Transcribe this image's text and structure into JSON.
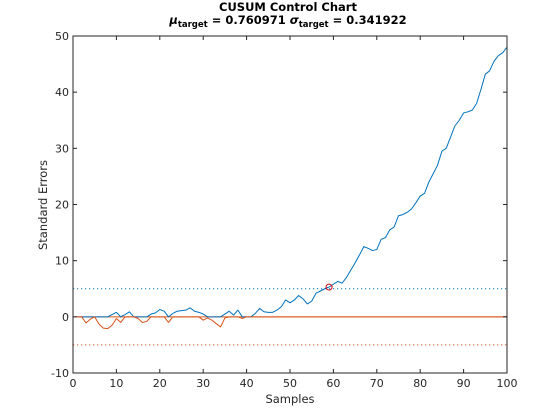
{
  "chart_data": {
    "type": "line",
    "title": "CUSUM Control Chart",
    "subtitle": {
      "mu_symbol": "μ",
      "sigma_symbol": "σ",
      "subscript": "target",
      "mu_text": " = 0.760971 ",
      "sigma_text": " = 0.341922"
    },
    "xlabel": "Samples",
    "ylabel": "Standard Errors",
    "xlim": [
      0,
      100
    ],
    "ylim": [
      -10,
      50
    ],
    "xticks": [
      "0",
      "10",
      "20",
      "30",
      "40",
      "50",
      "60",
      "70",
      "80",
      "90",
      "100"
    ],
    "yticks": [
      "-10",
      "0",
      "10",
      "20",
      "30",
      "40",
      "50"
    ],
    "grid": false,
    "control_limits": {
      "upper": 5,
      "lower": -5
    },
    "target_line": 0,
    "out_of_control_point": {
      "x": 59,
      "y": 5.3
    },
    "series": [
      {
        "color": "#0072BD",
        "x": [
          1,
          2,
          3,
          4,
          5,
          6,
          7,
          8,
          9,
          10,
          11,
          12,
          13,
          14,
          15,
          16,
          17,
          18,
          19,
          20,
          21,
          22,
          23,
          24,
          25,
          26,
          27,
          28,
          29,
          30,
          31,
          32,
          33,
          34,
          35,
          36,
          37,
          38,
          39,
          40,
          41,
          42,
          43,
          44,
          45,
          46,
          47,
          48,
          49,
          50,
          51,
          52,
          53,
          54,
          55,
          56,
          57,
          58,
          59,
          60,
          61,
          62,
          63,
          64,
          65,
          66,
          67,
          68,
          69,
          70,
          71,
          72,
          73,
          74,
          75,
          76,
          77,
          78,
          79,
          80,
          81,
          82,
          83,
          84,
          85,
          86,
          87,
          88,
          89,
          90,
          91,
          92,
          93,
          94,
          95,
          96,
          97,
          98,
          99,
          100
        ],
        "values": [
          0,
          0,
          0,
          0,
          0,
          0,
          0,
          0,
          0.4,
          0.8,
          0,
          0.4,
          0.9,
          0,
          0,
          0,
          0,
          0.5,
          0.7,
          1.3,
          1.0,
          0,
          0.6,
          1.0,
          1.1,
          1.2,
          1.6,
          1.0,
          0.8,
          0.5,
          0,
          0,
          0,
          0,
          0.5,
          1.0,
          0.3,
          1.2,
          0,
          0,
          0,
          0.6,
          1.5,
          0.9,
          0.8,
          0.8,
          1.2,
          1.8,
          3.0,
          2.5,
          3.0,
          3.8,
          3.2,
          2.3,
          2.8,
          4.2,
          4.6,
          5.0,
          5.3,
          5.8,
          6.3,
          6.0,
          7.0,
          8.3,
          9.6,
          11.0,
          12.5,
          12.2,
          11.8,
          12.0,
          13.8,
          14.1,
          15.5,
          16.0,
          18.0,
          18.2,
          18.6,
          19.2,
          20.3,
          21.5,
          22.0,
          24.0,
          25.5,
          27.0,
          29.5,
          30.0,
          32.0,
          34.0,
          35.0,
          36.3,
          36.5,
          36.8,
          38.0,
          40.5,
          43.2,
          43.8,
          45.5,
          46.5,
          47.0,
          48.0
        ]
      },
      {
        "color": "#D95319",
        "x": [
          1,
          2,
          3,
          4,
          5,
          6,
          7,
          8,
          9,
          10,
          11,
          12,
          13,
          14,
          15,
          16,
          17,
          18,
          19,
          20,
          21,
          22,
          23,
          24,
          25,
          26,
          27,
          28,
          29,
          30,
          31,
          32,
          33,
          34,
          35,
          36,
          37,
          38,
          39,
          40,
          41,
          42,
          43,
          44,
          45,
          46,
          47,
          48,
          49,
          50,
          51,
          52,
          53,
          54,
          55,
          56,
          57,
          58,
          59,
          60,
          61,
          62,
          63,
          64,
          65,
          66,
          67,
          68,
          69,
          70,
          71,
          72,
          73,
          74,
          75,
          76,
          77,
          78,
          79,
          80,
          81,
          82,
          83,
          84,
          85,
          86,
          87,
          88,
          89,
          90,
          91,
          92,
          93,
          94,
          95,
          96,
          97,
          98,
          99,
          100
        ],
        "values": [
          0,
          0,
          -1.1,
          -0.4,
          0,
          -1.3,
          -2.0,
          -2.1,
          -1.5,
          -0.3,
          -1.0,
          0,
          0,
          0,
          -0.3,
          -1.0,
          -0.8,
          0,
          0,
          0,
          0,
          -1.0,
          0,
          0,
          0,
          0,
          0,
          0,
          0,
          -0.6,
          -0.2,
          -0.6,
          -1.2,
          -1.8,
          -0.2,
          0,
          0,
          0,
          -0.3,
          0,
          0,
          0,
          0,
          0,
          0,
          0,
          0,
          0,
          0,
          0,
          0,
          0,
          0,
          0,
          0,
          0,
          0,
          0,
          0,
          0,
          0,
          0,
          0,
          0,
          0,
          0,
          0,
          0,
          0,
          0,
          0,
          0,
          0,
          0,
          0,
          0,
          0,
          0,
          0,
          0,
          0,
          0,
          0,
          0,
          0,
          0,
          0,
          0,
          0,
          0,
          0,
          0,
          0,
          0,
          0,
          0,
          0,
          0,
          0,
          0
        ]
      }
    ]
  }
}
